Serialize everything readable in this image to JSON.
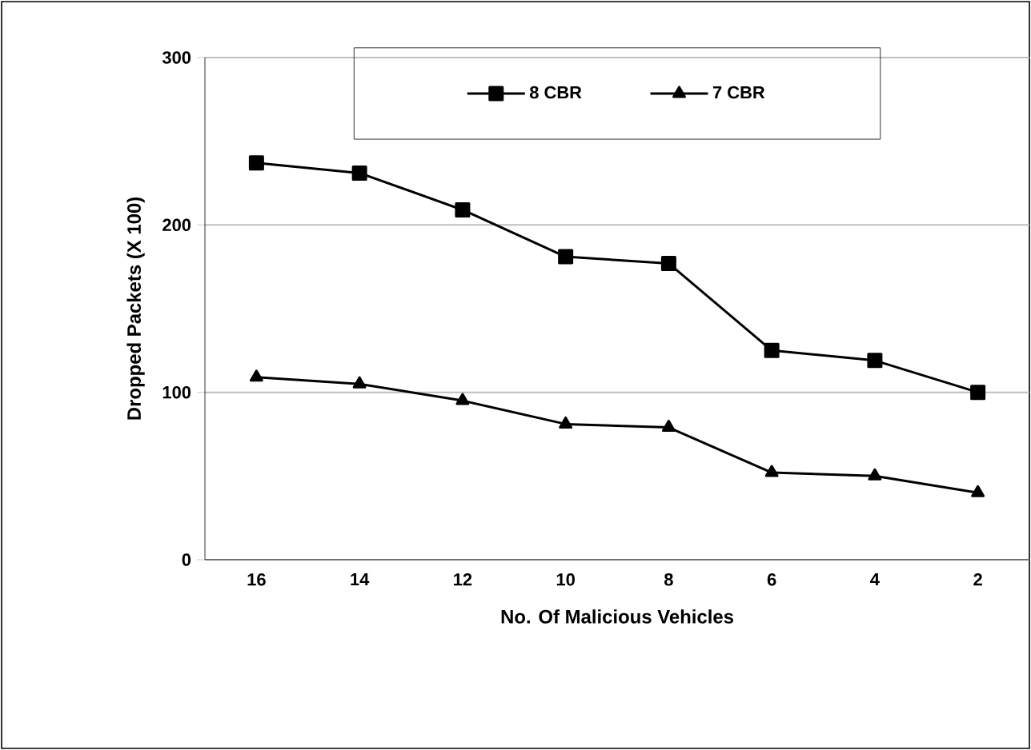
{
  "chart_data": {
    "type": "line",
    "xlabel": "No. Of Malicious Vehicles",
    "ylabel": "Dropped Packets (X 100)",
    "categories": [
      "16",
      "14",
      "12",
      "10",
      "8",
      "6",
      "4",
      "2"
    ],
    "series": [
      {
        "name": "8 CBR",
        "color": "#000000",
        "marker": "square",
        "values": [
          237,
          231,
          209,
          181,
          177,
          125,
          119,
          100
        ]
      },
      {
        "name": "7 CBR",
        "color": "#000000",
        "marker": "triangle",
        "values": [
          109,
          105,
          95,
          81,
          79,
          52,
          50,
          40
        ]
      }
    ],
    "ylim": [
      0,
      300
    ],
    "yticks": [
      0,
      100,
      200,
      300
    ],
    "grid": "y",
    "legend": "top",
    "line_style": "solid"
  }
}
